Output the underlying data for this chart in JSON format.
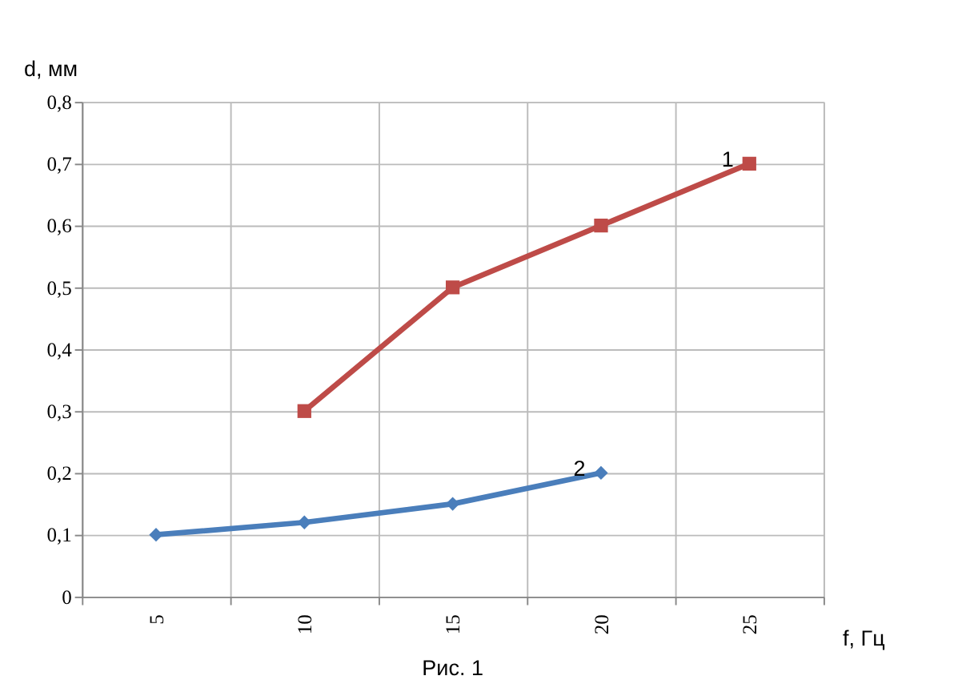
{
  "chart_data": {
    "type": "line",
    "xlabel": "f, Гц",
    "ylabel": "d, мм",
    "annotations": [
      "Рис. 1"
    ],
    "categories": [
      "5",
      "10",
      "15",
      "20",
      "25"
    ],
    "series": [
      {
        "name": "1",
        "color": "#be4b48",
        "marker": "square",
        "values": [
          null,
          0.3,
          0.5,
          0.6,
          0.7
        ]
      },
      {
        "name": "2",
        "color": "#4a7ebb",
        "marker": "diamond",
        "values": [
          0.1,
          0.12,
          0.15,
          0.2,
          null
        ]
      }
    ],
    "ylim": [
      0,
      0.8
    ],
    "yticks": [
      0,
      {
        "value": 0.1,
        "label": "0,1"
      },
      {
        "value": 0.2,
        "label": "0,2"
      },
      {
        "value": 0.3,
        "label": "0,3"
      },
      {
        "value": 0.4,
        "label": "0,4"
      },
      {
        "value": 0.5,
        "label": "0,5"
      },
      {
        "value": 0.6,
        "label": "0,6"
      },
      {
        "value": 0.7,
        "label": "0,7"
      },
      {
        "value": 0.8,
        "label": "0,8"
      }
    ],
    "grid": true,
    "legend": false,
    "line_style": "solid"
  }
}
